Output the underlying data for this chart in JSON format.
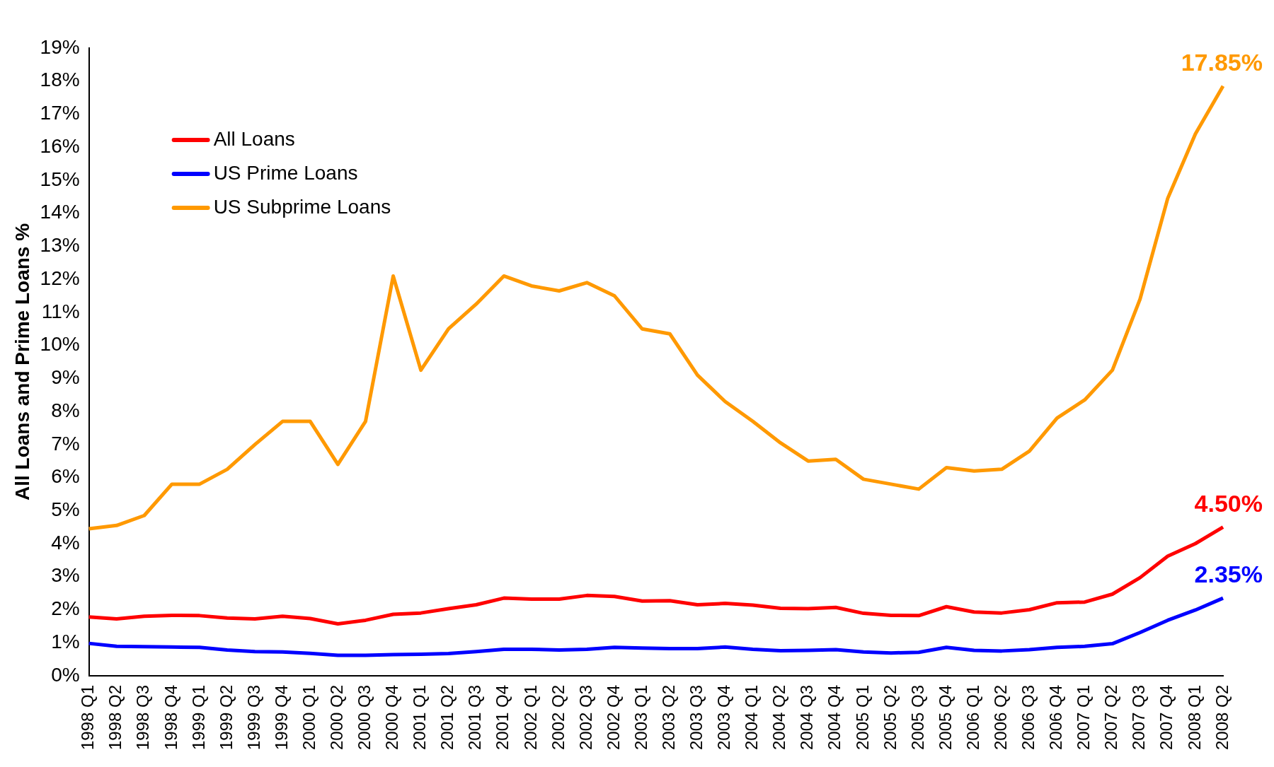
{
  "chart_data": {
    "type": "line",
    "ylabel": "All Loans and Prime Loans %",
    "categories": [
      "1998 Q1",
      "1998 Q2",
      "1998 Q3",
      "1998 Q4",
      "1999 Q1",
      "1999 Q2",
      "1999 Q3",
      "1999 Q4",
      "2000 Q1",
      "2000 Q2",
      "2000 Q3",
      "2000 Q4",
      "2001 Q1",
      "2001 Q2",
      "2001 Q3",
      "2001 Q4",
      "2002 Q1",
      "2002 Q2",
      "2002 Q3",
      "2002 Q4",
      "2003 Q1",
      "2003 Q2",
      "2003 Q3",
      "2003 Q4",
      "2004 Q1",
      "2004 Q2",
      "2004 Q3",
      "2004 Q4",
      "2005 Q1",
      "2005 Q2",
      "2005 Q3",
      "2005 Q4",
      "2006 Q1",
      "2006 Q2",
      "2006 Q3",
      "2006 Q4",
      "2007 Q1",
      "2007 Q2",
      "2007 Q3",
      "2007 Q4",
      "2008 Q1",
      "2008 Q2"
    ],
    "series": [
      {
        "name": "All Loans",
        "color": "#ff0000",
        "values": [
          1.78,
          1.72,
          1.8,
          1.83,
          1.82,
          1.75,
          1.72,
          1.8,
          1.73,
          1.57,
          1.68,
          1.86,
          1.9,
          2.03,
          2.15,
          2.35,
          2.32,
          2.32,
          2.43,
          2.4,
          2.26,
          2.27,
          2.15,
          2.19,
          2.14,
          2.04,
          2.03,
          2.07,
          1.89,
          1.83,
          1.82,
          2.09,
          1.93,
          1.9,
          2.0,
          2.21,
          2.23,
          2.47,
          2.97,
          3.62,
          4.0,
          4.5
        ],
        "value_labels": [
          null,
          null,
          null,
          null,
          null,
          null,
          null,
          null,
          null,
          null,
          null,
          null,
          null,
          null,
          null,
          null,
          null,
          null,
          null,
          null,
          null,
          null,
          null,
          null,
          null,
          null,
          null,
          null,
          null,
          null,
          null,
          null,
          null,
          null,
          null,
          null,
          null,
          null,
          null,
          null,
          null,
          "4.50%"
        ]
      },
      {
        "name": "US Prime Loans",
        "color": "#0000ff",
        "values": [
          0.98,
          0.89,
          0.88,
          0.87,
          0.86,
          0.78,
          0.73,
          0.72,
          0.68,
          0.62,
          0.62,
          0.64,
          0.65,
          0.67,
          0.73,
          0.8,
          0.8,
          0.78,
          0.8,
          0.86,
          0.84,
          0.82,
          0.82,
          0.87,
          0.8,
          0.76,
          0.77,
          0.79,
          0.72,
          0.69,
          0.71,
          0.86,
          0.77,
          0.75,
          0.79,
          0.86,
          0.89,
          0.97,
          1.31,
          1.68,
          1.99,
          2.35
        ],
        "value_labels": [
          null,
          null,
          null,
          null,
          null,
          null,
          null,
          null,
          null,
          null,
          null,
          null,
          null,
          null,
          null,
          null,
          null,
          null,
          null,
          null,
          null,
          null,
          null,
          null,
          null,
          null,
          null,
          null,
          null,
          null,
          null,
          null,
          null,
          null,
          null,
          null,
          null,
          null,
          null,
          null,
          null,
          "2.35%"
        ]
      },
      {
        "name": "US Subprime Loans",
        "color": "#ff9900",
        "values": [
          4.45,
          4.55,
          4.85,
          5.8,
          5.8,
          6.25,
          7.0,
          7.7,
          7.7,
          6.4,
          7.7,
          12.1,
          9.25,
          10.5,
          11.25,
          12.1,
          11.8,
          11.65,
          11.9,
          11.5,
          10.5,
          10.35,
          9.1,
          8.3,
          7.7,
          7.05,
          6.5,
          6.55,
          5.95,
          5.8,
          5.65,
          6.3,
          6.2,
          6.25,
          6.8,
          7.8,
          8.35,
          9.25,
          11.4,
          14.45,
          16.4,
          17.85
        ],
        "value_labels": [
          null,
          null,
          null,
          null,
          null,
          null,
          null,
          null,
          null,
          null,
          null,
          null,
          null,
          null,
          null,
          null,
          null,
          null,
          null,
          null,
          null,
          null,
          null,
          null,
          null,
          null,
          null,
          null,
          null,
          null,
          null,
          null,
          null,
          null,
          null,
          null,
          null,
          null,
          null,
          null,
          null,
          "17.85%"
        ]
      }
    ],
    "ylim": [
      0,
      19
    ],
    "yticks": [
      {
        "value": 0,
        "label": "0%"
      },
      {
        "value": 1,
        "label": "1%"
      },
      {
        "value": 2,
        "label": "2%"
      },
      {
        "value": 3,
        "label": "3%"
      },
      {
        "value": 4,
        "label": "4%"
      },
      {
        "value": 5,
        "label": "5%"
      },
      {
        "value": 6,
        "label": "6%"
      },
      {
        "value": 7,
        "label": "7%"
      },
      {
        "value": 8,
        "label": "8%"
      },
      {
        "value": 9,
        "label": "9%"
      },
      {
        "value": 10,
        "label": "10%"
      },
      {
        "value": 11,
        "label": "11%"
      },
      {
        "value": 12,
        "label": "12%"
      },
      {
        "value": 13,
        "label": "13%"
      },
      {
        "value": 14,
        "label": "14%"
      },
      {
        "value": 15,
        "label": "15%"
      },
      {
        "value": 16,
        "label": "16%"
      },
      {
        "value": 17,
        "label": "17%"
      },
      {
        "value": 18,
        "label": "18%"
      },
      {
        "value": 19,
        "label": "19%"
      }
    ],
    "grid": false,
    "legend": "top left",
    "marker": "none",
    "line_style": "solid"
  }
}
